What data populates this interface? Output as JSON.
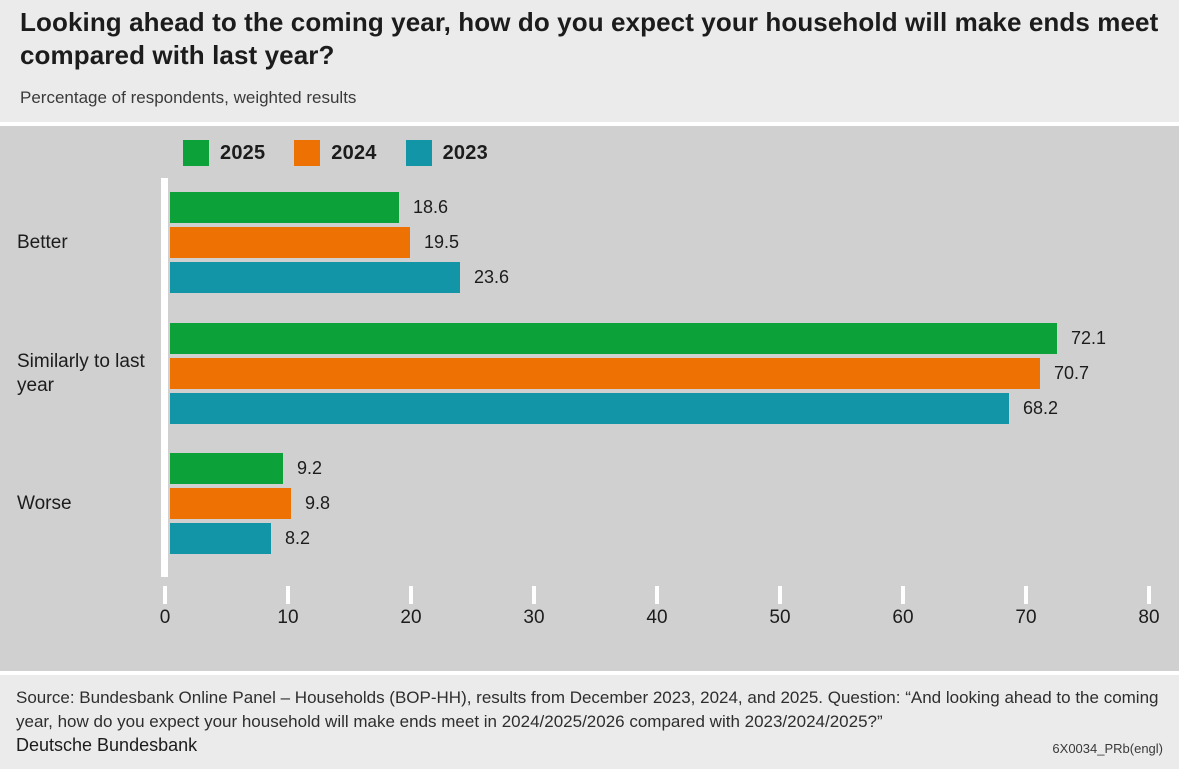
{
  "header": {
    "title": "Looking ahead to the coming year, how do you expect your household will make ends meet compared with last year?",
    "subtitle": "Percentage of respondents, weighted results"
  },
  "chart_data": {
    "type": "bar",
    "orientation": "horizontal",
    "title": "Looking ahead to the coming year, how do you expect your household will make ends meet compared with last year?",
    "subtitle": "Percentage of respondents, weighted results",
    "categories": [
      "Better",
      "Similarly to last year",
      "Worse"
    ],
    "series": [
      {
        "name": "2025",
        "color": "#0da13a",
        "values": [
          18.6,
          72.1,
          9.2
        ]
      },
      {
        "name": "2024",
        "color": "#ee7203",
        "values": [
          19.5,
          70.7,
          9.8
        ]
      },
      {
        "name": "2023",
        "color": "#1295a6",
        "values": [
          23.6,
          68.2,
          8.2
        ]
      }
    ],
    "xlabel": "",
    "ylabel": "",
    "xlim": [
      0,
      80
    ],
    "xticks": [
      0,
      10,
      20,
      30,
      40,
      50,
      60,
      70,
      80
    ],
    "grid": false,
    "legend_position": "top",
    "value_labels": true
  },
  "footer": {
    "source": "Source: Bundesbank Online Panel – Households (BOP-HH), results from December 2023, 2024, and 2025. Question: “And looking ahead to the coming year, how do you expect your household will make ends meet in 2024/2025/2026 compared with 2023/2024/2025?”",
    "publisher": "Deutsche Bundesbank",
    "code": "6X0034_PRb(engl)"
  },
  "colors": {
    "header_bg": "#ebebeb",
    "chart_bg": "#d0d0d0",
    "footer_bg": "#ebebeb",
    "axis_white": "#ffffff",
    "text": "#1c1c1c",
    "series_2025": "#0da13a",
    "series_2024": "#ee7203",
    "series_2023": "#1295a6"
  }
}
